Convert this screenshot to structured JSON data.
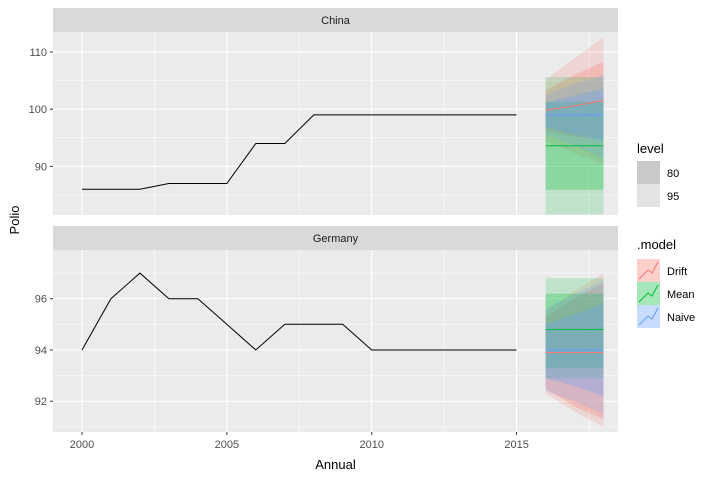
{
  "chart_data": {
    "type": "line",
    "xlabel": "Annual",
    "ylabel": "Polio",
    "x_ticks": [
      2000,
      2005,
      2010,
      2015
    ],
    "xlim": [
      1999.0,
      2018.5
    ],
    "history_x": [
      2000,
      2001,
      2002,
      2003,
      2004,
      2005,
      2006,
      2007,
      2008,
      2009,
      2010,
      2011,
      2012,
      2013,
      2014,
      2015
    ],
    "forecast_x": [
      2016,
      2017,
      2018
    ],
    "panels": [
      {
        "strip": "China",
        "ylim": [
          81.5,
          113.5
        ],
        "y_ticks": [
          90,
          100,
          110
        ],
        "history": [
          86,
          86,
          86,
          87,
          87,
          87,
          94,
          94,
          99,
          99,
          99,
          99,
          99,
          99,
          99,
          99
        ],
        "forecasts": [
          {
            "model": "Drift",
            "mean": [
              99.8,
              100.6,
              101.5
            ],
            "lo80": [
              96.3,
              95.2,
              94.7
            ],
            "hi80": [
              103.3,
              106.0,
              108.3
            ],
            "lo95": [
              94.4,
              92.3,
              90.4
            ],
            "hi95": [
              105.2,
              108.9,
              112.6
            ]
          },
          {
            "model": "Mean",
            "mean": [
              93.6,
              93.6,
              93.6
            ],
            "lo80": [
              85.9,
              85.9,
              85.9
            ],
            "hi80": [
              101.3,
              101.3,
              101.3
            ],
            "lo95": [
              81.6,
              81.6,
              81.6
            ],
            "hi95": [
              105.6,
              105.6,
              105.6
            ]
          },
          {
            "model": "Naive",
            "mean": [
              99,
              99,
              99
            ],
            "lo80": [
              96.9,
              95.6,
              94.4
            ],
            "hi80": [
              101.1,
              102.4,
              103.6
            ],
            "lo95": [
              95.5,
              93.6,
              91.4
            ],
            "hi95": [
              102.5,
              104.4,
              106.0
            ]
          }
        ]
      },
      {
        "strip": "Germany",
        "ylim": [
          90.8,
          97.9
        ],
        "y_ticks": [
          92,
          94,
          96
        ],
        "history": [
          94,
          96,
          97,
          96,
          96,
          95,
          94,
          95,
          95,
          95,
          94,
          94,
          94,
          94,
          94,
          94
        ],
        "forecasts": [
          {
            "model": "Drift",
            "mean": [
              93.9,
              93.9,
              93.9
            ],
            "lo80": [
              92.5,
              91.8,
              91.3
            ],
            "hi80": [
              95.3,
              96.0,
              96.6
            ],
            "lo95": [
              92.3,
              91.6,
              91.0
            ],
            "hi95": [
              95.5,
              96.3,
              97.0
            ]
          },
          {
            "model": "Mean",
            "mean": [
              94.8,
              94.8,
              94.8
            ],
            "lo80": [
              93.3,
              93.3,
              93.3
            ],
            "hi80": [
              96.2,
              96.2,
              96.2
            ],
            "lo95": [
              92.9,
              92.9,
              92.9
            ],
            "hi95": [
              96.8,
              96.8,
              96.8
            ]
          },
          {
            "model": "Naive",
            "mean": [
              94,
              94,
              94
            ],
            "lo80": [
              92.9,
              92.6,
              92.2
            ],
            "hi80": [
              95.0,
              95.4,
              95.8
            ],
            "lo95": [
              92.4,
              92.0,
              91.5
            ],
            "hi95": [
              95.6,
              96.2,
              96.7
            ]
          }
        ]
      }
    ],
    "legend": {
      "placement": "right",
      "level_title": "level",
      "levels": [
        "80",
        "95"
      ],
      "model_title": ".model",
      "models": [
        "Drift",
        "Mean",
        "Naive"
      ]
    },
    "colors": {
      "panel_bg": "#ebebeb",
      "grid": "#ffffff",
      "strip_bg": "#d9d9d9",
      "history_line": "#000000",
      "Drift": "#f8766d",
      "Mean": "#00ba38",
      "Naive": "#619cff",
      "level_80_key": "#c9c9c9",
      "level_95_key": "#e3e3e3"
    }
  }
}
